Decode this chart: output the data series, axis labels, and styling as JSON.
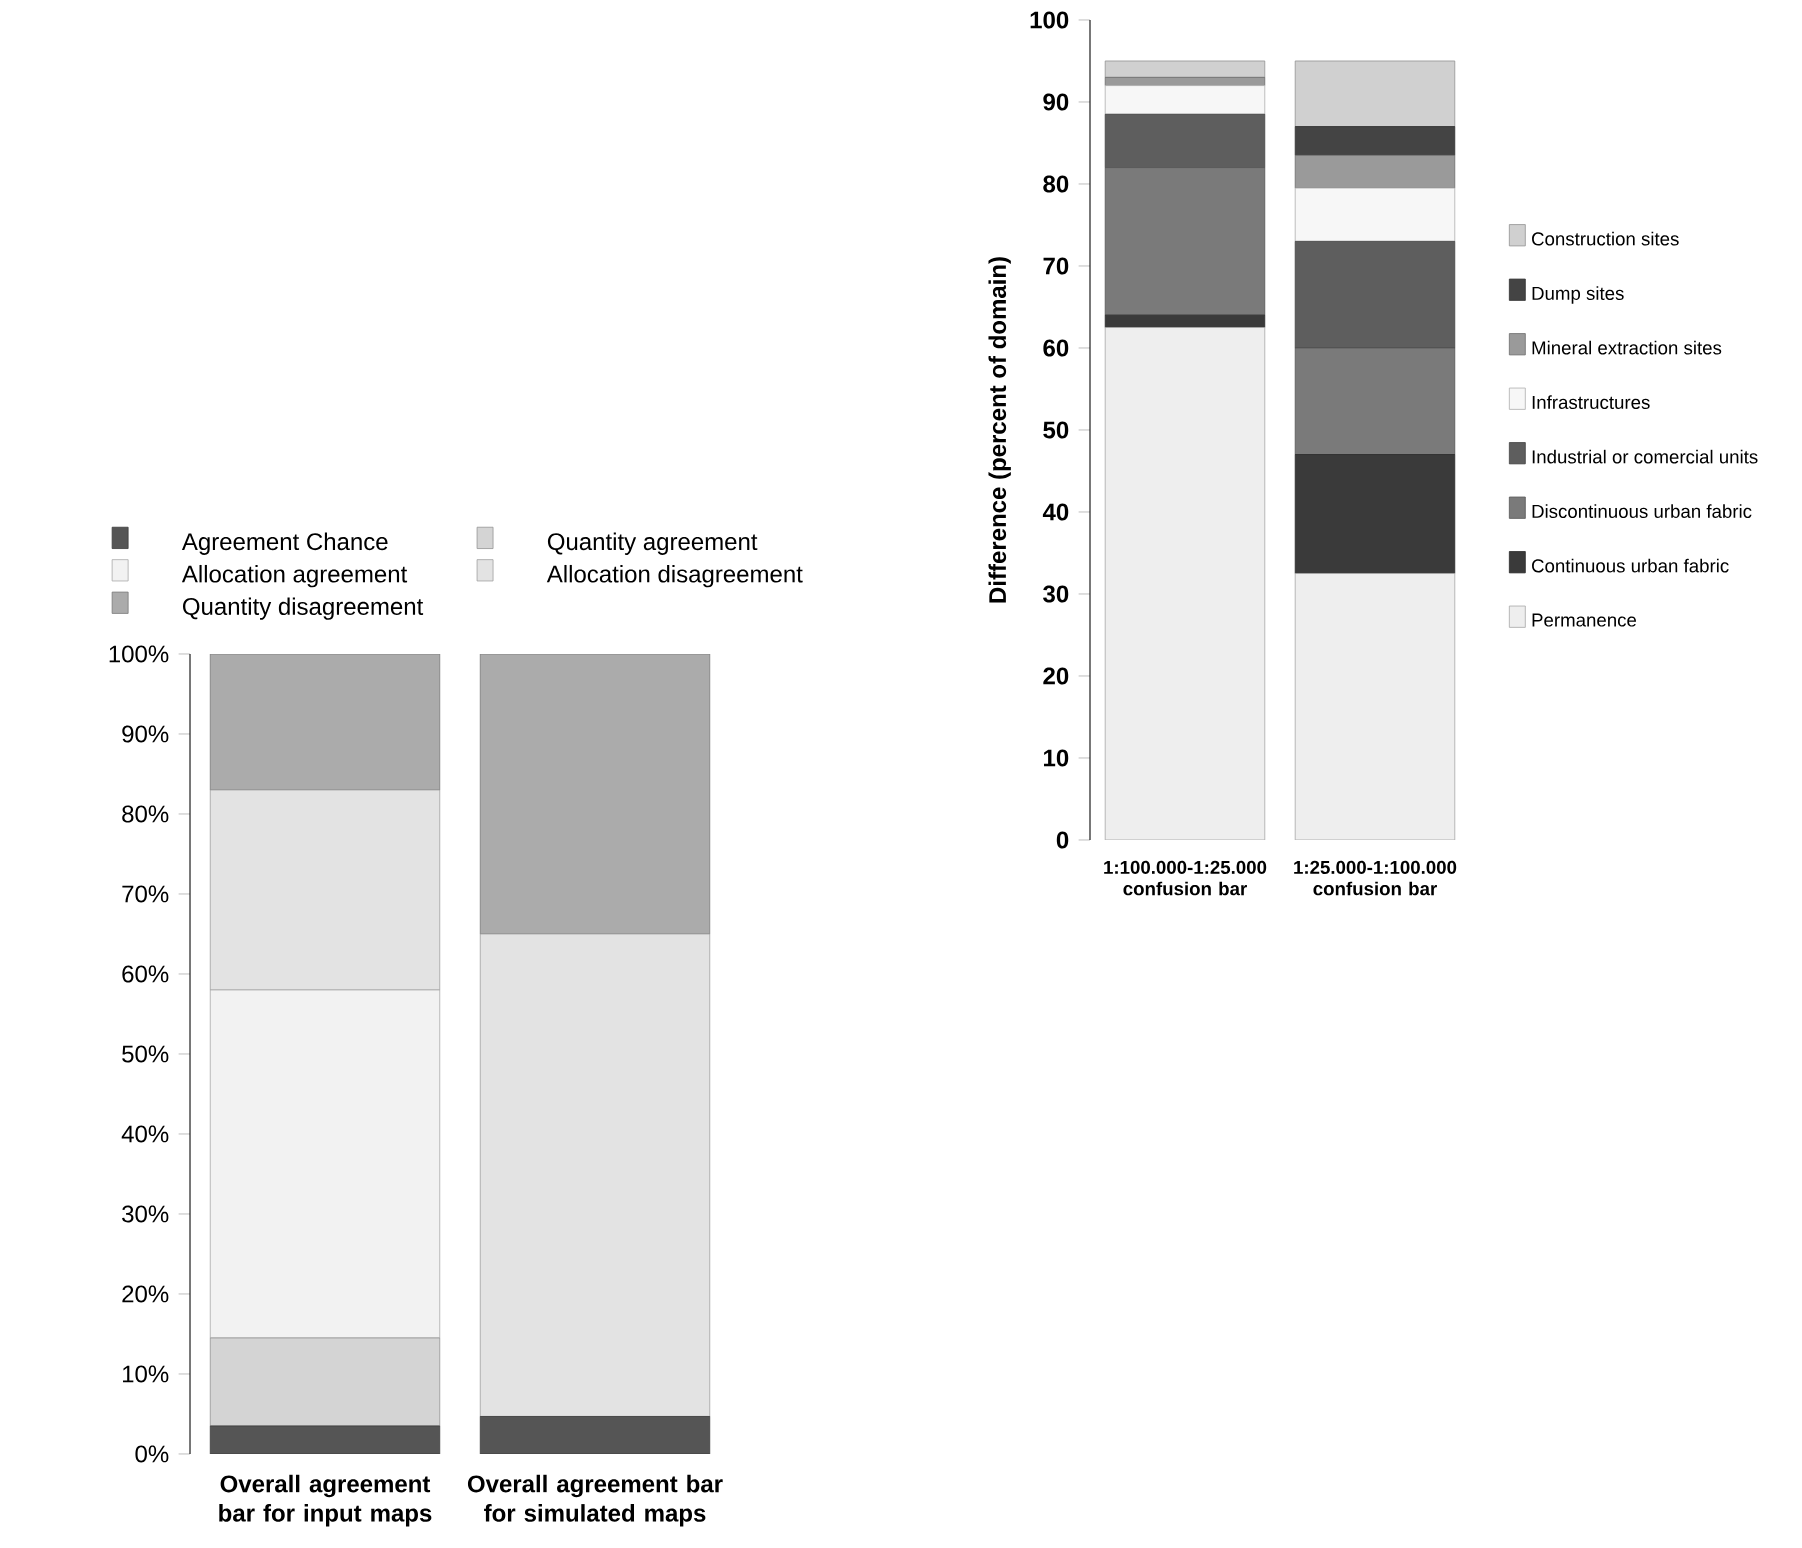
{
  "chart_data": [
    {
      "type": "bar",
      "stacked": true,
      "categories": [
        "Overall agreement bar for input maps",
        "Overall agreement bar for simulated maps"
      ],
      "ylim": [
        0,
        100
      ],
      "yticks": [
        {
          "value": 0,
          "label": "0%"
        },
        {
          "value": 10,
          "label": "10%"
        },
        {
          "value": 20,
          "label": "20%"
        },
        {
          "value": 30,
          "label": "30%"
        },
        {
          "value": 40,
          "label": "40%"
        },
        {
          "value": 50,
          "label": "50%"
        },
        {
          "value": 60,
          "label": "60%"
        },
        {
          "value": 70,
          "label": "70%"
        },
        {
          "value": 80,
          "label": "80%"
        },
        {
          "value": 90,
          "label": "90%"
        },
        {
          "value": 100,
          "label": "100%"
        }
      ],
      "legend": "top",
      "series": [
        {
          "name": "Agreement Chance",
          "color": "#555555",
          "values": [
            3.5,
            4.7
          ]
        },
        {
          "name": "Quantity agreement",
          "color": "#d4d4d4",
          "values": [
            11,
            0
          ]
        },
        {
          "name": "Allocation agreement",
          "color": "#f2f2f2",
          "values": [
            43.5,
            0
          ]
        },
        {
          "name": "Allocation disagreement",
          "color": "#e3e3e3",
          "values": [
            25,
            60.3
          ]
        },
        {
          "name": "Quantity disagreement",
          "color": "#ababab",
          "values": [
            17,
            35
          ]
        }
      ]
    },
    {
      "type": "bar",
      "stacked": true,
      "categories": [
        "1:100.000-1:25.000 confusion bar",
        "1:25.000-1:100.000 confusion bar"
      ],
      "ylabel": "Difference (percent of domain)",
      "ylim": [
        0,
        100
      ],
      "yticks": [
        0,
        10,
        20,
        30,
        40,
        50,
        60,
        70,
        80,
        90,
        100
      ],
      "legend": "right",
      "series": [
        {
          "name": "Permanence",
          "color": "#eeeeee",
          "values": [
            62.5,
            32.5
          ]
        },
        {
          "name": "Continuous urban fabric",
          "color": "#3a3a3a",
          "values": [
            1.5,
            14.5
          ]
        },
        {
          "name": "Discontinuous urban fabric",
          "color": "#7a7a7a",
          "values": [
            18,
            13
          ]
        },
        {
          "name": "Industrial or comercial units",
          "color": "#5e5e5e",
          "values": [
            6.5,
            13
          ]
        },
        {
          "name": "Infrastructures",
          "color": "#f7f7f7",
          "values": [
            3.5,
            6.5
          ]
        },
        {
          "name": "Mineral extraction sites",
          "color": "#9a9a9a",
          "values": [
            1,
            4
          ]
        },
        {
          "name": "Dump sites",
          "color": "#444444",
          "values": [
            0,
            3.5
          ]
        },
        {
          "name": "Construction sites",
          "color": "#d0d0d0",
          "values": [
            2,
            8
          ]
        }
      ]
    }
  ]
}
